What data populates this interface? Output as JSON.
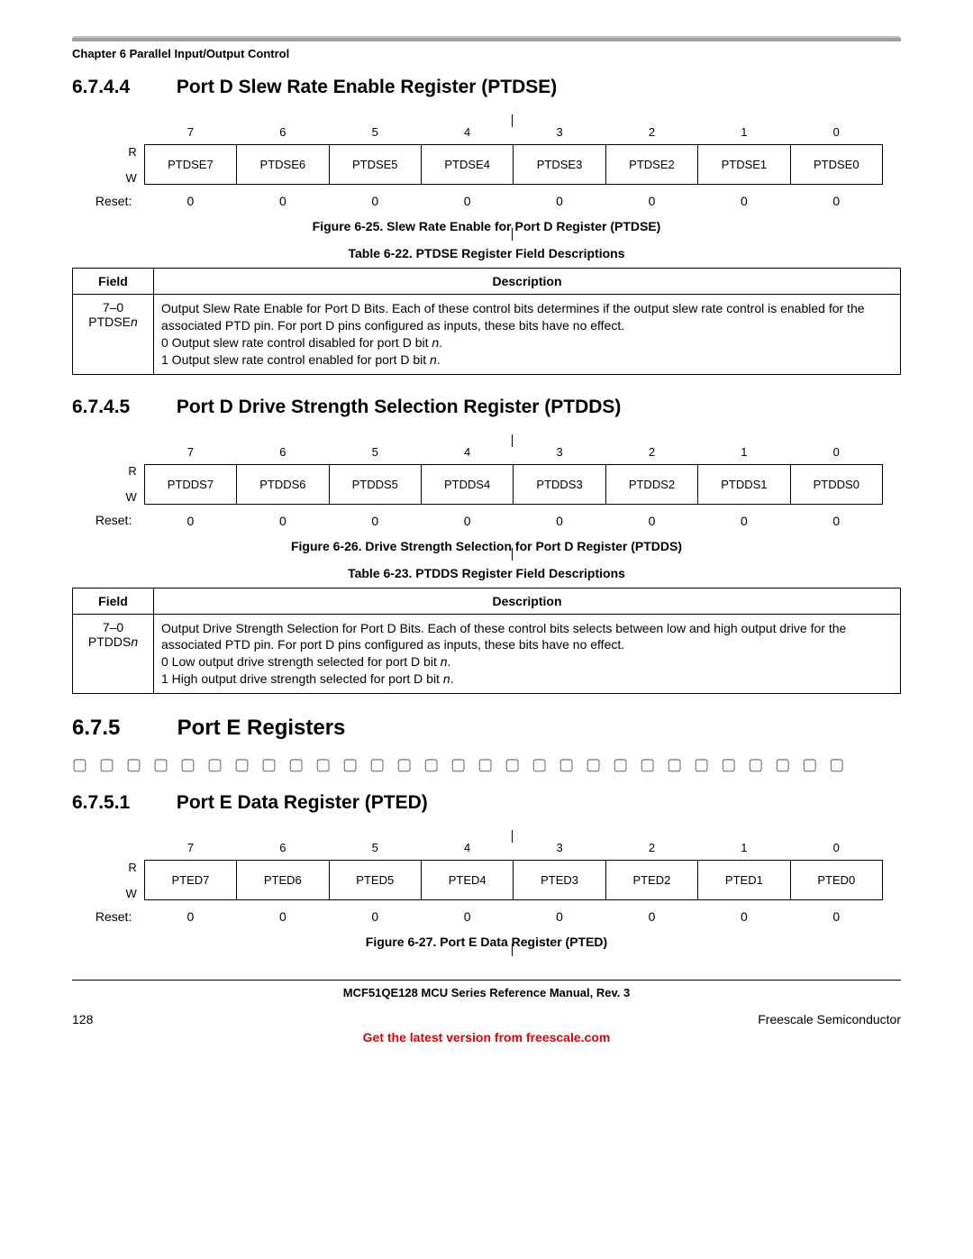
{
  "chapter_header": "Chapter 6 Parallel Input/Output Control",
  "sections": {
    "s1": {
      "num": "6.7.4.4",
      "title": "Port D Slew Rate Enable Register (PTDSE)"
    },
    "s2": {
      "num": "6.7.4.5",
      "title": "Port D Drive Strength Selection Register (PTDDS)"
    },
    "s3": {
      "num": "6.7.5",
      "title": "Port E Registers"
    },
    "s4": {
      "num": "6.7.5.1",
      "title": "Port E Data Register (PTED)"
    }
  },
  "bit_numbers": [
    "7",
    "6",
    "5",
    "4",
    "3",
    "2",
    "1",
    "0"
  ],
  "rw_labels": {
    "r": "R",
    "w": "W",
    "reset": "Reset:"
  },
  "reg1": {
    "bits": [
      "PTDSE7",
      "PTDSE6",
      "PTDSE5",
      "PTDSE4",
      "PTDSE3",
      "PTDSE2",
      "PTDSE1",
      "PTDSE0"
    ],
    "reset": [
      "0",
      "0",
      "0",
      "0",
      "0",
      "0",
      "0",
      "0"
    ],
    "fig_caption": "Figure 6-25. Slew Rate Enable for Port D Register (PTDSE)",
    "tbl_caption": "Table 6-22. PTDSE Register Field Descriptions",
    "field_range": "7–0",
    "field_name": "PTDSE",
    "field_suffix": "n",
    "desc_l1": "Output Slew Rate Enable for Port D Bits. Each of these control bits determines if the output slew rate control is enabled for the associated PTD pin. For port D pins configured as inputs, these bits have no effect.",
    "desc_l2_pre": "0   Output slew rate control disabled for port D bit ",
    "desc_l3_pre": "1   Output slew rate control enabled for port D bit ",
    "n": "n",
    "dot": "."
  },
  "reg2": {
    "bits": [
      "PTDDS7",
      "PTDDS6",
      "PTDDS5",
      "PTDDS4",
      "PTDDS3",
      "PTDDS2",
      "PTDDS1",
      "PTDDS0"
    ],
    "reset": [
      "0",
      "0",
      "0",
      "0",
      "0",
      "0",
      "0",
      "0"
    ],
    "fig_caption": "Figure 6-26. Drive Strength Selection for Port D Register (PTDDS)",
    "tbl_caption": "Table 6-23. PTDDS Register Field Descriptions",
    "field_range": "7–0",
    "field_name": "PTDDS",
    "field_suffix": "n",
    "desc_l1": "Output Drive Strength Selection for Port D Bits. Each of these control bits selects between low and high output drive for the associated PTD pin. For port D pins configured as inputs, these bits have no effect.",
    "desc_l2_pre": "0   Low output drive strength selected for port D bit ",
    "desc_l3_pre": "1   High output drive strength selected for port D bit ",
    "n": "n",
    "dot": "."
  },
  "reg3": {
    "bits": [
      "PTED7",
      "PTED6",
      "PTED5",
      "PTED4",
      "PTED3",
      "PTED2",
      "PTED1",
      "PTED0"
    ],
    "reset": [
      "0",
      "0",
      "0",
      "0",
      "0",
      "0",
      "0",
      "0"
    ],
    "fig_caption": "Figure 6-27. Port E Data Register (PTED)"
  },
  "table_headers": {
    "field": "Field",
    "desc": "Description"
  },
  "squares": "▢ ▢ ▢ ▢ ▢ ▢ ▢ ▢ ▢ ▢ ▢ ▢ ▢ ▢ ▢ ▢ ▢ ▢ ▢ ▢ ▢ ▢ ▢ ▢ ▢ ▢ ▢ ▢ ▢",
  "footer": {
    "manual": "MCF51QE128 MCU Series Reference Manual, Rev. 3",
    "page": "128",
    "vendor": "Freescale Semiconductor",
    "link": "Get the latest version from freescale.com"
  }
}
